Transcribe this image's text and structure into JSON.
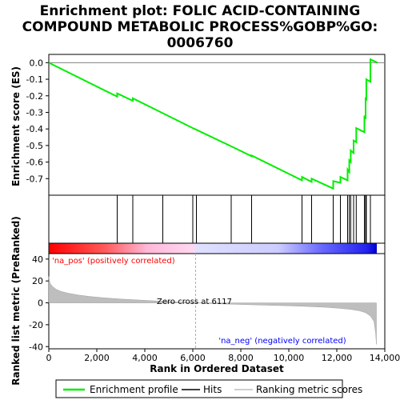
{
  "chart_data": {
    "type": "line",
    "title_lines": [
      "Enrichment plot: FOLIC ACID-CONTAINING",
      "COMPOUND METABOLIC PROCESS%GOBP%GO:",
      "0006760"
    ],
    "es_panel": {
      "ylabel": "Enrichment score (ES)",
      "ylim": [
        -0.8,
        0.05
      ],
      "yticks": [
        0.0,
        -0.1,
        -0.2,
        -0.3,
        -0.4,
        -0.5,
        -0.6,
        -0.7
      ],
      "ytick_labels": [
        "0.0",
        "-0.1",
        "-0.2",
        "-0.3",
        "-0.4",
        "-0.5",
        "-0.6",
        "-0.7"
      ],
      "series": [
        {
          "name": "Enrichment profile",
          "color": "#00ee00",
          "x": [
            0,
            2850,
            2851,
            3500,
            3501,
            4750,
            4751,
            6000,
            6001,
            6150,
            6151,
            7600,
            7601,
            8450,
            8451,
            10550,
            10551,
            10950,
            10951,
            11850,
            11851,
            12150,
            12151,
            12450,
            12451,
            12520,
            12521,
            12580,
            12581,
            12700,
            12701,
            12810,
            12811,
            13150,
            13151,
            13200,
            13201,
            13230,
            13231,
            13400,
            13401,
            13700
          ],
          "y": [
            0.0,
            -0.205,
            -0.185,
            -0.23,
            -0.215,
            -0.305,
            -0.305,
            -0.395,
            -0.395,
            -0.405,
            -0.405,
            -0.505,
            -0.505,
            -0.565,
            -0.56,
            -0.71,
            -0.69,
            -0.72,
            -0.7,
            -0.76,
            -0.715,
            -0.725,
            -0.69,
            -0.71,
            -0.645,
            -0.66,
            -0.59,
            -0.6,
            -0.53,
            -0.545,
            -0.47,
            -0.48,
            -0.395,
            -0.42,
            -0.32,
            -0.34,
            -0.21,
            -0.23,
            -0.1,
            -0.115,
            0.02,
            0.0
          ]
        }
      ]
    },
    "hits_panel": {
      "legend_label": "Hits",
      "hit_positions": [
        2850,
        3500,
        4750,
        6000,
        6150,
        7600,
        8450,
        10550,
        10950,
        11850,
        12150,
        12450,
        12520,
        12580,
        12700,
        12810,
        13150,
        13200,
        13230,
        13400
      ]
    },
    "rank_panel": {
      "ylabel": "Ranked list metric (PreRanked)",
      "legend_label": "Ranking metric scores",
      "ylim": [
        -42,
        45
      ],
      "yticks": [
        40,
        20,
        0,
        -20,
        -40
      ],
      "ytick_labels": [
        "40",
        "20",
        "0",
        "-20",
        "-40"
      ],
      "zero_cross_label": "Zero cross at 6117",
      "zero_cross_rank": 6117,
      "pos_label": "'na_pos' (positively correlated)",
      "neg_label": "'na_neg' (negatively correlated)",
      "pos_color": "#ff0000",
      "neg_color": "#0000ff",
      "x": [
        0,
        50,
        150,
        300,
        500,
        800,
        1200,
        1700,
        2300,
        3000,
        3800,
        4600,
        5400,
        6117,
        6800,
        7600,
        8400,
        9200,
        10000,
        10800,
        11500,
        12100,
        12600,
        12950,
        13200,
        13400,
        13550,
        13620,
        13650
      ],
      "y": [
        24,
        18,
        15,
        12.5,
        10.5,
        8.8,
        7.2,
        5.8,
        4.6,
        3.5,
        2.5,
        1.6,
        0.8,
        0,
        -0.7,
        -1.2,
        -1.7,
        -2.2,
        -2.7,
        -3.3,
        -4.0,
        -4.9,
        -6.0,
        -7.3,
        -9.0,
        -12,
        -17,
        -28,
        -38
      ]
    },
    "xaxis": {
      "xlabel": "Rank in Ordered Dataset",
      "xlim": [
        0,
        14000
      ],
      "xticks": [
        0,
        2000,
        4000,
        6000,
        8000,
        10000,
        12000,
        14000
      ],
      "xtick_labels": [
        "0",
        "2,000",
        "4,000",
        "6,000",
        "8,000",
        "10,000",
        "12,000",
        "14,000"
      ],
      "n_genes": 13700
    },
    "legend": {
      "placement": "bottom",
      "entries": [
        "Enrichment profile",
        "Hits",
        "Ranking metric scores"
      ]
    }
  }
}
